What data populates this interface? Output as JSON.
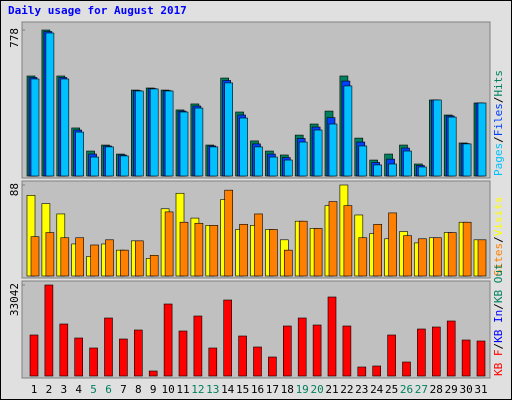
{
  "title": "Daily usage for August 2017",
  "legend_separator": "/",
  "chart_data": [
    {
      "type": "bar",
      "ylim": [
        0,
        778
      ],
      "yticks": [
        778
      ],
      "series": [
        {
          "name": "Hits",
          "color": "#00805c",
          "values": [
            533,
            778,
            533,
            256,
            133,
            165,
            117,
            458,
            469,
            458,
            352,
            384,
            165,
            522,
            341,
            187,
            133,
            112,
            218,
            277,
            346,
            533,
            202,
            85,
            117,
            165,
            64,
            405,
            325,
            176,
            389
          ]
        },
        {
          "name": "Files",
          "color": "#0040ff",
          "values": [
            525,
            770,
            525,
            245,
            117,
            160,
            112,
            455,
            466,
            455,
            346,
            373,
            160,
            509,
            325,
            171,
            117,
            98,
            200,
            261,
            311,
            506,
            181,
            72,
            90,
            149,
            56,
            405,
            320,
            173,
            389
          ]
        },
        {
          "name": "Pages",
          "color": "#00c0ff",
          "values": [
            517,
            762,
            517,
            234,
            101,
            155,
            107,
            453,
            464,
            453,
            341,
            362,
            155,
            496,
            309,
            155,
            101,
            85,
            181,
            245,
            277,
            480,
            160,
            59,
            64,
            133,
            48,
            405,
            314,
            171,
            389
          ]
        }
      ]
    },
    {
      "type": "bar",
      "ylim": [
        0,
        88
      ],
      "yticks": [
        88
      ],
      "series": [
        {
          "name": "Visits",
          "color": "#ffff00",
          "values": [
            78,
            70,
            60,
            31,
            19,
            31,
            25,
            34,
            17,
            65,
            80,
            56,
            49,
            74,
            45,
            49,
            45,
            35,
            53,
            46,
            68,
            88,
            59,
            41,
            36,
            43,
            32,
            37,
            42,
            52,
            35
          ]
        },
        {
          "name": "Sites",
          "color": "#ff8000",
          "values": [
            38,
            42,
            37,
            37,
            30,
            35,
            25,
            34,
            20,
            62,
            52,
            51,
            49,
            83,
            50,
            60,
            45,
            25,
            53,
            46,
            72,
            68,
            37,
            50,
            61,
            39,
            36,
            37,
            42,
            52,
            35
          ]
        }
      ]
    },
    {
      "type": "bar",
      "ylim": [
        0,
        33042
      ],
      "yticks": [
        33042
      ],
      "categories": [
        "1",
        "2",
        "3",
        "4",
        "5",
        "6",
        "7",
        "8",
        "9",
        "10",
        "11",
        "12",
        "13",
        "14",
        "15",
        "16",
        "17",
        "18",
        "19",
        "20",
        "21",
        "22",
        "23",
        "24",
        "25",
        "26",
        "27",
        "28",
        "29",
        "30",
        "31"
      ],
      "category_colors": [
        "#000",
        "#000",
        "#000",
        "#000",
        "#00805c",
        "#00805c",
        "#000",
        "#000",
        "#000",
        "#000",
        "#000",
        "#00805c",
        "#00805c",
        "#000",
        "#000",
        "#000",
        "#000",
        "#000",
        "#00805c",
        "#00805c",
        "#000",
        "#000",
        "#000",
        "#000",
        "#000",
        "#00805c",
        "#00805c",
        "#000",
        "#000",
        "#000",
        "#000"
      ],
      "series": [
        {
          "name": "KB F",
          "color": "#ff0000",
          "values": [
            14887,
            33042,
            18880,
            13798,
            10167,
            21058,
            13435,
            16702,
            1815,
            26143,
            16339,
            21784,
            10167,
            27595,
            14524,
            10530,
            6899,
            18155,
            21058,
            18517,
            28685,
            18155,
            3268,
            3631,
            14887,
            5083,
            17065,
            17792,
            19970,
            13072,
            12709
          ]
        }
      ],
      "other_legend": [
        {
          "name": "KB In",
          "color": "#0000ff"
        },
        {
          "name": "KB Out",
          "color": "#00805c"
        }
      ]
    }
  ]
}
